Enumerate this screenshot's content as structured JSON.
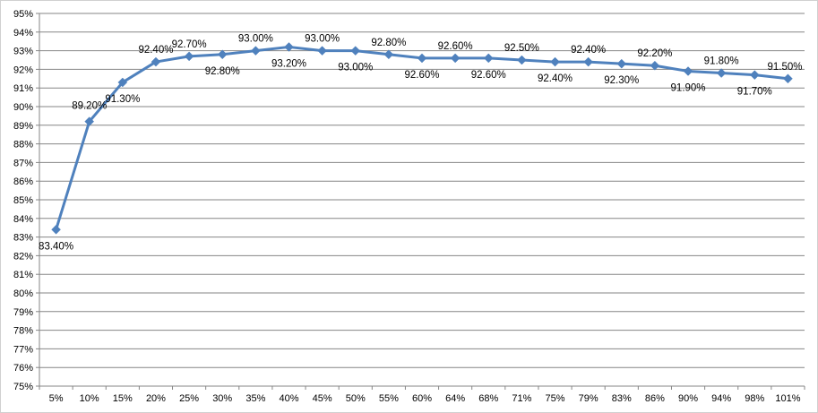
{
  "chart_data": {
    "type": "line",
    "title": "",
    "xlabel": "",
    "ylabel": "",
    "categories": [
      "5%",
      "10%",
      "15%",
      "20%",
      "25%",
      "30%",
      "35%",
      "40%",
      "45%",
      "50%",
      "55%",
      "60%",
      "64%",
      "68%",
      "71%",
      "75%",
      "79%",
      "83%",
      "86%",
      "90%",
      "94%",
      "98%",
      "101%"
    ],
    "series": [
      {
        "values": [
          83.4,
          89.2,
          91.3,
          92.4,
          92.7,
          92.8,
          93.0,
          93.2,
          93.0,
          93.0,
          92.8,
          92.6,
          92.6,
          92.6,
          92.5,
          92.4,
          92.4,
          92.3,
          92.2,
          91.9,
          91.8,
          91.7,
          91.5
        ],
        "data_labels": [
          "83.40%",
          "89.20%",
          "91.30%",
          "92.40%",
          "92.70%",
          "92.80%",
          "93.00%",
          "93.20%",
          "93.00%",
          "93.00%",
          "92.80%",
          "92.60%",
          "92.60%",
          "92.60%",
          "92.50%",
          "92.40%",
          "92.40%",
          "92.30%",
          "92.20%",
          "91.90%",
          "91.80%",
          "91.70%",
          "91.50%"
        ],
        "color": "#4F81BD",
        "marker": "diamond"
      }
    ],
    "ylim": [
      75,
      95
    ],
    "y_ticks": [
      75,
      76,
      77,
      78,
      79,
      80,
      81,
      82,
      83,
      84,
      85,
      86,
      87,
      88,
      89,
      90,
      91,
      92,
      93,
      94,
      95
    ],
    "y_tick_labels": [
      "75%",
      "76%",
      "77%",
      "78%",
      "79%",
      "80%",
      "81%",
      "82%",
      "83%",
      "84%",
      "85%",
      "86%",
      "87%",
      "88%",
      "89%",
      "90%",
      "91%",
      "92%",
      "93%",
      "94%",
      "95%"
    ],
    "grid": true,
    "legend": "none",
    "gridline_color": "#868686"
  }
}
